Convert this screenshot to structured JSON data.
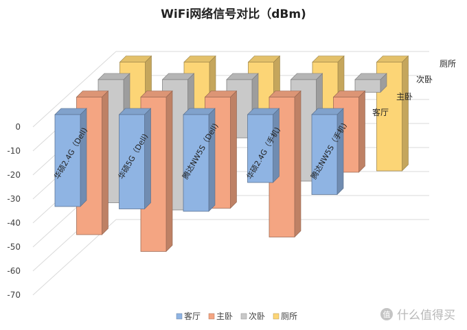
{
  "chart_data": {
    "type": "bar",
    "subtype": "3d-column",
    "title": "WiFi网络信号对比（dBm)",
    "categories": [
      "华硕2.4G（Dell)",
      "华硕5G（Dell)",
      "腾达NW5S（Dell)",
      "华硕2.4G（手机)",
      "腾达NW5S（手机)"
    ],
    "series": [
      {
        "name": "客厅",
        "color": "#8fb4e3",
        "values": [
          -36,
          -37,
          -38,
          -26,
          -31
        ]
      },
      {
        "name": "主卧",
        "color": "#f4a582",
        "values": [
          -55,
          -62,
          -44,
          -56,
          -29
        ]
      },
      {
        "name": "次卧",
        "color": "#c9c9c9",
        "values": [
          -49,
          -52,
          -22,
          -40,
          -3
        ]
      },
      {
        "name": "厕所",
        "color": "#fcd576",
        "values": [
          -43,
          -43,
          -43,
          -43,
          -43
        ]
      }
    ],
    "y_ticks": [
      "0",
      "-10",
      "-20",
      "-30",
      "-40",
      "-50",
      "-60",
      "-70"
    ],
    "ylim": [
      -70,
      0
    ],
    "grid": true,
    "legend_position": "bottom",
    "watermark": "值 什么值得买"
  }
}
